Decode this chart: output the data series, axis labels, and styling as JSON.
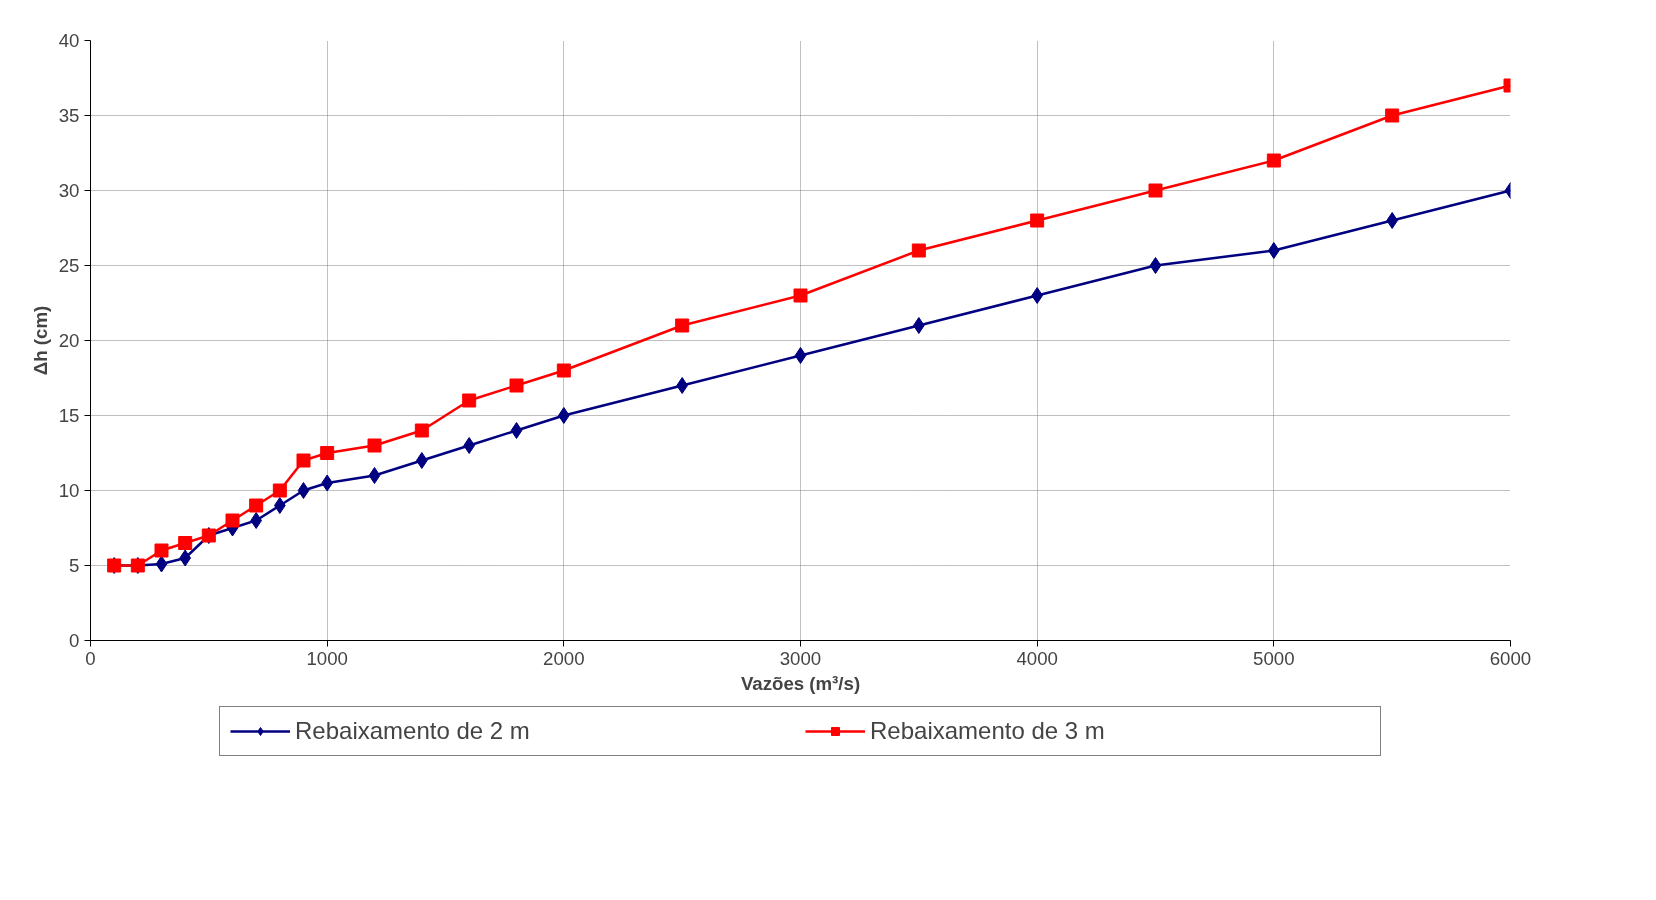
{
  "chart_data": {
    "type": "line",
    "xlabel": "Vazões (m³/s)",
    "ylabel": "Δh (cm)",
    "xlim": [
      0,
      6000
    ],
    "xticks": [
      0,
      1000,
      2000,
      3000,
      4000,
      5000,
      6000
    ],
    "ylim": [
      0,
      40
    ],
    "yticks": [
      0,
      5,
      10,
      15,
      20,
      25,
      30,
      35,
      40
    ],
    "grid": true,
    "legend": "bottom",
    "series": [
      {
        "name": "Rebaixamento de 2 m",
        "color": "#000080",
        "marker": "diamond",
        "x": [
          100,
          200,
          300,
          400,
          500,
          600,
          700,
          800,
          900,
          1000,
          1200,
          1400,
          1600,
          1800,
          2000,
          2500,
          3000,
          3500,
          4000,
          4500,
          5000,
          5500,
          6000
        ],
        "values": [
          5,
          5,
          5.1,
          5.5,
          7,
          7.5,
          8,
          9,
          10,
          10.5,
          11,
          12,
          13,
          14,
          15,
          17,
          19,
          21,
          23,
          25,
          26,
          28,
          30
        ]
      },
      {
        "name": "Rebaixamento de 3 m",
        "color": "#ff0000",
        "marker": "square",
        "x": [
          100,
          200,
          300,
          400,
          500,
          600,
          700,
          800,
          900,
          1000,
          1200,
          1400,
          1600,
          1800,
          2000,
          2500,
          3000,
          3500,
          4000,
          4500,
          5000,
          5500,
          6000
        ],
        "values": [
          5,
          5,
          6,
          6.5,
          7,
          8,
          9,
          10,
          12,
          12.5,
          13,
          14,
          16,
          17,
          18,
          21,
          23,
          26,
          28,
          30,
          32,
          35,
          37
        ]
      }
    ]
  }
}
